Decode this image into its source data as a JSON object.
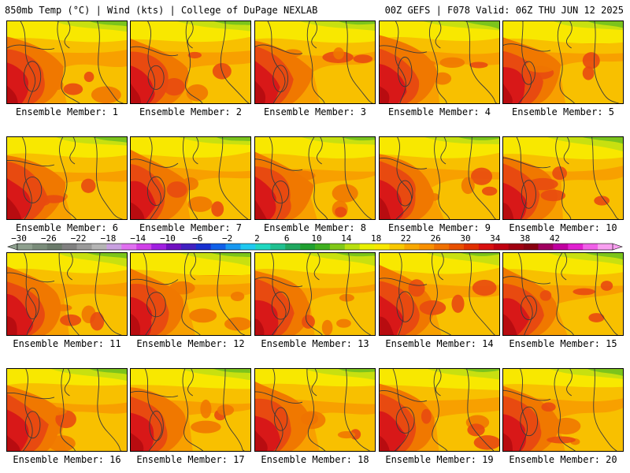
{
  "header": {
    "left_title": "850mb Temp (°C) | Wind (kts) | College of DuPage NEXLAB",
    "right_title": "00Z GEFS | F078 Valid: 06Z THU JUN 12 2025"
  },
  "panel_label_prefix": "Ensemble Member: ",
  "members": [
    1,
    2,
    3,
    4,
    5,
    6,
    7,
    8,
    9,
    10,
    11,
    12,
    13,
    14,
    15,
    16,
    17,
    18,
    19,
    20
  ],
  "member_labels": [
    "Ensemble Member: 1",
    "Ensemble Member: 2",
    "Ensemble Member: 3",
    "Ensemble Member: 4",
    "Ensemble Member: 5",
    "Ensemble Member: 6",
    "Ensemble Member: 7",
    "Ensemble Member: 8",
    "Ensemble Member: 9",
    "Ensemble Member: 10",
    "Ensemble Member: 11",
    "Ensemble Member: 12",
    "Ensemble Member: 13",
    "Ensemble Member: 14",
    "Ensemble Member: 15",
    "Ensemble Member: 16",
    "Ensemble Member: 17",
    "Ensemble Member: 18",
    "Ensemble Member: 19",
    "Ensemble Member: 20"
  ],
  "colorbar": {
    "labels": [
      "-30",
      "-26",
      "-22",
      "-18",
      "-14",
      "-10",
      "-6",
      "-2",
      "2",
      "6",
      "10",
      "14",
      "18",
      "22",
      "26",
      "30",
      "34",
      "38",
      "42"
    ],
    "colors": [
      "#8ea08e",
      "#7a8c7a",
      "#6a7a6a",
      "#808080",
      "#9a9a9a",
      "#b4b4b4",
      "#c8a0e0",
      "#e070f0",
      "#d040e8",
      "#a020e0",
      "#7010c0",
      "#4020c0",
      "#1830d0",
      "#1060e8",
      "#1898f0",
      "#20c8f0",
      "#20d8c0",
      "#20c090",
      "#20a860",
      "#20a030",
      "#40b020",
      "#80c818",
      "#b8e010",
      "#e8f000",
      "#f8e800",
      "#f8c800",
      "#f8a800",
      "#f89000",
      "#f07000",
      "#e85000",
      "#e03000",
      "#d81010",
      "#c00010",
      "#a00010",
      "#880010",
      "#a00060",
      "#c000a0",
      "#e020d0",
      "#f060e8",
      "#f8a0f0"
    ]
  },
  "palette": {
    "green": "#7cc41c",
    "yellow_green": "#c8e010",
    "yellow": "#f8e800",
    "light_orange": "#f8c000",
    "orange": "#f8a000",
    "dark_orange": "#f07800",
    "red_orange": "#e84a10",
    "red": "#d81818",
    "dark_red": "#b80c10",
    "contour": "#3a3a3a"
  }
}
